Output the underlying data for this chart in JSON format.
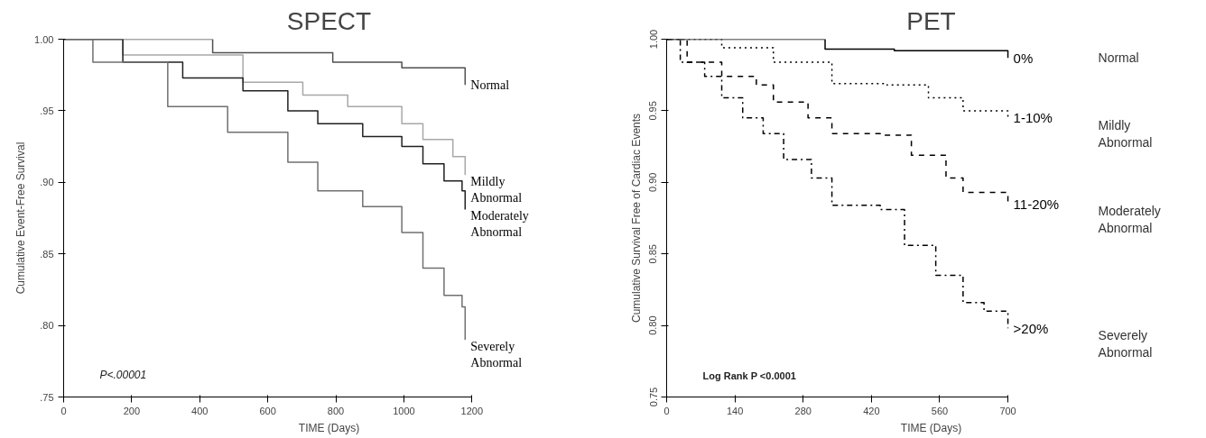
{
  "chart_data": [
    {
      "type": "step",
      "title": "SPECT",
      "xlabel": "TIME (Days)",
      "ylabel": "Cumulative Event-Free Survival",
      "xlim": [
        0,
        1200
      ],
      "ylim": [
        0.75,
        1.0
      ],
      "xticks": [
        0,
        200,
        400,
        600,
        800,
        1000,
        1200
      ],
      "yticks": [
        {
          "value": 0.75,
          "label": ".75"
        },
        {
          "value": 0.8,
          "label": ".80"
        },
        {
          "value": 0.85,
          "label": ".85"
        },
        {
          "value": 0.9,
          "label": ".90"
        },
        {
          "value": 0.95,
          "label": ".95"
        },
        {
          "value": 1.0,
          "label": "1.00"
        }
      ],
      "grid": false,
      "line_style": "solid",
      "series": [
        {
          "name": "Normal",
          "color": "#505050",
          "x": [
            0,
            438,
            791,
            994,
            1180
          ],
          "values": [
            1.0,
            0.9905,
            0.984,
            0.98,
            0.968
          ]
        },
        {
          "name": "Mildly Abnormal",
          "color": "#a8a8a8",
          "x": [
            0,
            174,
            527,
            703,
            835,
            994,
            1056,
            1144,
            1180
          ],
          "values": [
            1.0,
            0.989,
            0.97,
            0.961,
            0.953,
            0.941,
            0.93,
            0.918,
            0.905
          ]
        },
        {
          "name": "Moderately Abnormal",
          "color": "#202020",
          "x": [
            0,
            174,
            350,
            527,
            659,
            747,
            879,
            994,
            1056,
            1118,
            1171,
            1180
          ],
          "values": [
            1.0,
            0.984,
            0.973,
            0.964,
            0.95,
            0.941,
            0.932,
            0.925,
            0.913,
            0.901,
            0.894,
            0.881
          ]
        },
        {
          "name": "Severely Abnormal",
          "color": "#707070",
          "x": [
            0,
            86,
            306,
            482,
            659,
            747,
            879,
            994,
            1056,
            1118,
            1171,
            1180
          ],
          "values": [
            1.0,
            0.984,
            0.953,
            0.935,
            0.914,
            0.894,
            0.883,
            0.865,
            0.84,
            0.821,
            0.813,
            0.79
          ]
        }
      ],
      "annotations": [
        "P<.00001"
      ]
    },
    {
      "type": "step",
      "title": "PET",
      "xlabel": "TIME (Days)",
      "ylabel": "Cumulative Survival Free of Cardiac Events",
      "xlim": [
        0,
        700
      ],
      "ylim": [
        0.75,
        1.0
      ],
      "xticks": [
        0,
        140,
        280,
        420,
        560,
        700
      ],
      "yticks": [
        {
          "value": 0.75,
          "label": "0.75"
        },
        {
          "value": 0.8,
          "label": "0.80"
        },
        {
          "value": 0.85,
          "label": "0.85"
        },
        {
          "value": 0.9,
          "label": "0.90"
        },
        {
          "value": 0.95,
          "label": "0.95"
        },
        {
          "value": 1.0,
          "label": "1.00"
        }
      ],
      "grid": false,
      "series": [
        {
          "name": "0%",
          "color": "#000000",
          "line_style": "solid",
          "x": [
            0,
            325,
            467,
            700
          ],
          "values": [
            1.0,
            0.993,
            0.992,
            0.987
          ]
        },
        {
          "name": "1-10%",
          "color": "#000000",
          "line_style": "dotted",
          "x": [
            0,
            113,
            219,
            339,
            452,
            537,
            608,
            700
          ],
          "values": [
            1.0,
            0.994,
            0.984,
            0.969,
            0.968,
            0.959,
            0.95,
            0.945
          ]
        },
        {
          "name": "11-20%",
          "color": "#000000",
          "line_style": "dashed",
          "x": [
            0,
            42,
            113,
            184,
            219,
            290,
            339,
            438,
            502,
            573,
            608,
            700
          ],
          "values": [
            1.0,
            0.984,
            0.974,
            0.968,
            0.956,
            0.945,
            0.934,
            0.933,
            0.919,
            0.903,
            0.893,
            0.885
          ]
        },
        {
          "name": ">20%",
          "color": "#000000",
          "line_style": "dashdot",
          "x": [
            0,
            28,
            78,
            113,
            156,
            198,
            240,
            297,
            339,
            438,
            488,
            552,
            608,
            651,
            700
          ],
          "values": [
            1.0,
            0.984,
            0.974,
            0.959,
            0.945,
            0.934,
            0.916,
            0.903,
            0.884,
            0.881,
            0.856,
            0.835,
            0.816,
            0.81,
            0.798
          ]
        }
      ],
      "annotations": [
        "Normal",
        "Mildly Abnormal",
        "Moderately Abnormal",
        "Severely Abnormal",
        "Log Rank P <0.0001"
      ]
    }
  ]
}
